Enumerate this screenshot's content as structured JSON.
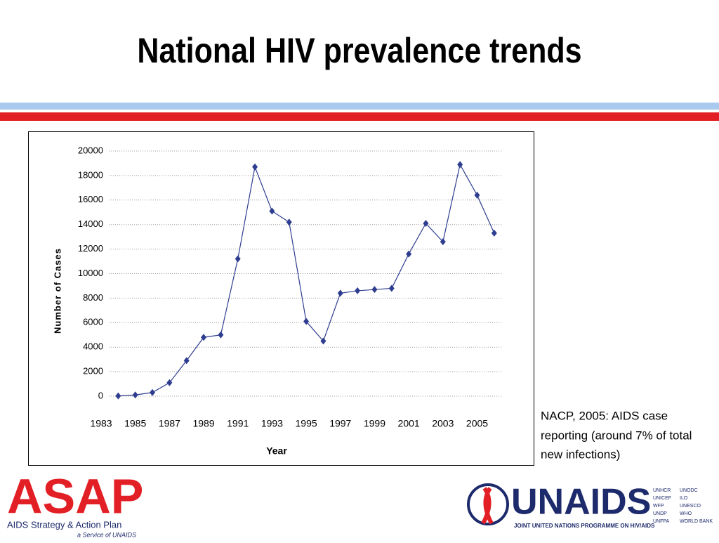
{
  "slide": {
    "title": "National HIV prevalence trends",
    "note": [
      "NACP, 2005: AIDS case",
      "reporting (around 7% of total",
      "new infections)"
    ],
    "asap": {
      "name": "ASAP",
      "tagline": "AIDS Strategy & Action Plan",
      "service": "a Service of UNAIDS"
    },
    "unaids": {
      "name": "UNAIDS",
      "tagline": "JOINT UNITED NATIONS PROGRAMME ON HIV/AIDS",
      "partners": [
        "UNHCR",
        "UNICEF",
        "WFP",
        "UNDP",
        "UNFPA",
        "UNODC",
        "ILO",
        "UNESCO",
        "WHO",
        "WORLD BANK"
      ]
    }
  },
  "chart_data": {
    "type": "line",
    "x_label": "Year",
    "y_label": "Number of Cases",
    "x": [
      1984,
      1985,
      1986,
      1987,
      1988,
      1989,
      1990,
      1991,
      1992,
      1993,
      1994,
      1995,
      1996,
      1997,
      1998,
      1999,
      2000,
      2001,
      2002,
      2003,
      2004,
      2005,
      2006
    ],
    "series": [
      {
        "name": "Cases",
        "color": "#2e3d8f",
        "values": [
          20,
          100,
          300,
          1100,
          2900,
          4800,
          5000,
          11200,
          18700,
          15100,
          14200,
          6100,
          4500,
          8400,
          8600,
          8700,
          8800,
          11600,
          14100,
          12600,
          18900,
          16400,
          13300
        ]
      }
    ],
    "xlim": [
      1983,
      2006.5
    ],
    "xticks": [
      1983,
      1985,
      1987,
      1989,
      1991,
      1993,
      1995,
      1997,
      1999,
      2001,
      2003,
      2005
    ],
    "ylim": [
      0,
      20000
    ],
    "yticks": [
      0,
      2000,
      4000,
      6000,
      8000,
      10000,
      12000,
      14000,
      16000,
      18000,
      20000
    ],
    "grid": true,
    "legend": false
  }
}
